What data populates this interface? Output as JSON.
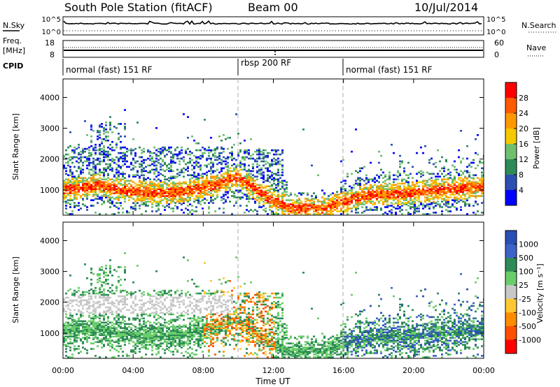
{
  "header": {
    "station": "South Pole Station (fitACF)",
    "beam": "Beam 00",
    "date": "10/Jul/2014"
  },
  "strips": {
    "nsky_label": "N.Sky",
    "nsky_ticks": [
      "10^5",
      "10^0"
    ],
    "nsearch_label": "N.Search",
    "nsearch_ticks": [
      "10^5",
      "10^0"
    ],
    "freq_label": "Freq.",
    "freq_unit": "[MHz]",
    "freq_ticks": [
      "18",
      "8"
    ],
    "nave_label": "Nave",
    "nave_ticks": [
      "60",
      "0"
    ],
    "cpid_label": "CPID",
    "cpid_segments": [
      {
        "label": "normal (fast) 151 RF",
        "start_h": 0,
        "end_h": 10
      },
      {
        "label": "rbsp 200 RF",
        "start_h": 10,
        "end_h": 16
      },
      {
        "label": "normal (fast) 151 RF",
        "start_h": 16,
        "end_h": 24
      }
    ]
  },
  "chart_data": [
    {
      "type": "heatmap",
      "title": "",
      "xlabel": "",
      "ylabel": "Slant Range [km]",
      "xlim": [
        0,
        24
      ],
      "ylim": [
        180,
        4600
      ],
      "yticks": [
        1000,
        2000,
        3000,
        4000
      ],
      "grid": false,
      "colorbar": {
        "label": "Power [dB]",
        "ticks": [
          "28",
          "24",
          "20",
          "16",
          "12",
          "8",
          "4"
        ],
        "colors": [
          "#ff0000",
          "#ff5a00",
          "#ff9900",
          "#f5c800",
          "#6fbf6f",
          "#2e8b57",
          "#2d4fb4",
          "#0000ff"
        ]
      },
      "series": [
        {
          "name": "band",
          "x": [
            0,
            1,
            2,
            3,
            4,
            5,
            6,
            7,
            8,
            9,
            9.6,
            10,
            11,
            12,
            13,
            14,
            15,
            16,
            17,
            18,
            19,
            20,
            21,
            22,
            23,
            24
          ],
          "y": [
            1000,
            1050,
            1150,
            1000,
            950,
            900,
            900,
            950,
            1050,
            1200,
            1400,
            1350,
            1000,
            600,
            400,
            380,
            400,
            600,
            800,
            850,
            850,
            900,
            950,
            1000,
            1050,
            1100
          ]
        }
      ]
    },
    {
      "type": "heatmap",
      "title": "",
      "xlabel": "Time UT",
      "ylabel": "Slant Range [km]",
      "xlim": [
        0,
        24
      ],
      "ylim": [
        180,
        4600
      ],
      "xticks": [
        "00:00",
        "04:00",
        "08:00",
        "12:00",
        "16:00",
        "20:00",
        "00:00"
      ],
      "yticks": [
        1000,
        2000,
        3000,
        4000
      ],
      "grid": false,
      "colorbar": {
        "label": "Velocity [m s⁻¹]",
        "ticks": [
          "1000",
          "500",
          "100",
          "25",
          "-25",
          "-100",
          "-500",
          "-1000"
        ],
        "colors": [
          "#2850b4",
          "#3c64c8",
          "#2e8b57",
          "#6acd6a",
          "#c8c8c8",
          "#ffc832",
          "#ff8c00",
          "#ff5000",
          "#ff0000"
        ]
      },
      "series": [
        {
          "name": "band",
          "x": [
            0,
            1,
            2,
            3,
            4,
            5,
            6,
            7,
            8,
            9,
            9.6,
            10,
            11,
            12,
            13,
            14,
            15,
            16,
            17,
            18,
            19,
            20,
            21,
            22,
            23,
            24
          ],
          "y": [
            1000,
            1050,
            1150,
            1000,
            950,
            900,
            900,
            950,
            1050,
            1200,
            1400,
            1350,
            1000,
            600,
            400,
            380,
            400,
            600,
            800,
            850,
            850,
            900,
            950,
            1000,
            1050,
            1100
          ]
        }
      ]
    }
  ]
}
